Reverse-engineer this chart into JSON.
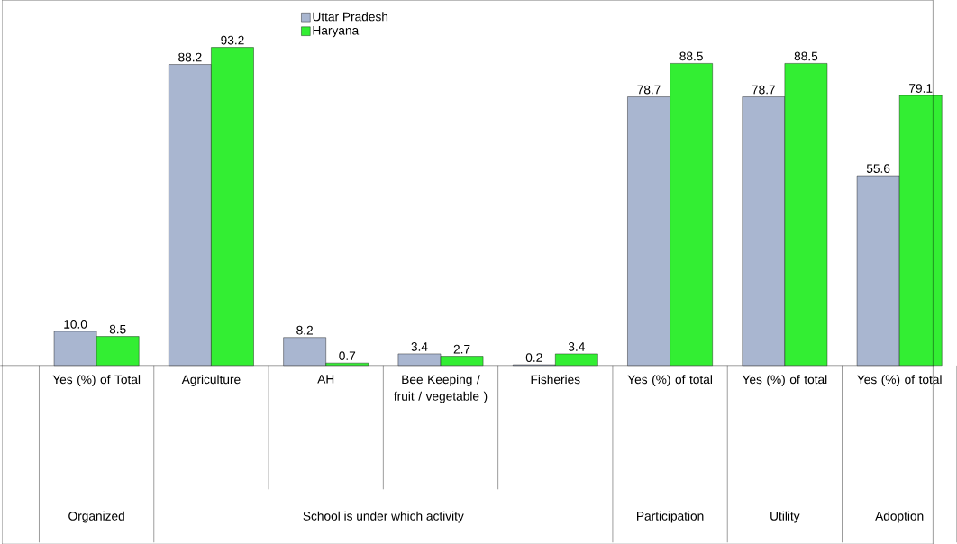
{
  "chart_data": {
    "type": "bar",
    "categories": [
      "Yes (%) of Total",
      "Agriculture",
      "AH",
      "Bee Keeping / fruit / vegetable )",
      "Fisheries",
      "Yes (%) of total",
      "Yes (%) of total",
      "Yes (%) of total"
    ],
    "series": [
      {
        "name": "Uttar Pradesh",
        "color": "#a9b6d0",
        "values": [
          10.0,
          88.2,
          8.2,
          3.4,
          0.2,
          78.7,
          78.7,
          55.6
        ],
        "value_labels": [
          "10.0",
          "88.2",
          "8.2",
          "3.4",
          "0.2",
          "78.7",
          "78.7",
          "55.6"
        ]
      },
      {
        "name": "Haryana",
        "color": "#33ee33",
        "values": [
          8.5,
          93.2,
          0.7,
          2.7,
          3.4,
          88.5,
          88.5,
          79.1
        ],
        "value_labels": [
          "8.5",
          "93.2",
          "0.7",
          "2.7",
          "3.4",
          "88.5",
          "88.5",
          "79.1"
        ]
      }
    ],
    "annotations": [
      "Organized",
      "School is under which activity",
      "Participation",
      "Utility",
      "Adoption"
    ],
    "data_labels": true,
    "legend": "top"
  }
}
